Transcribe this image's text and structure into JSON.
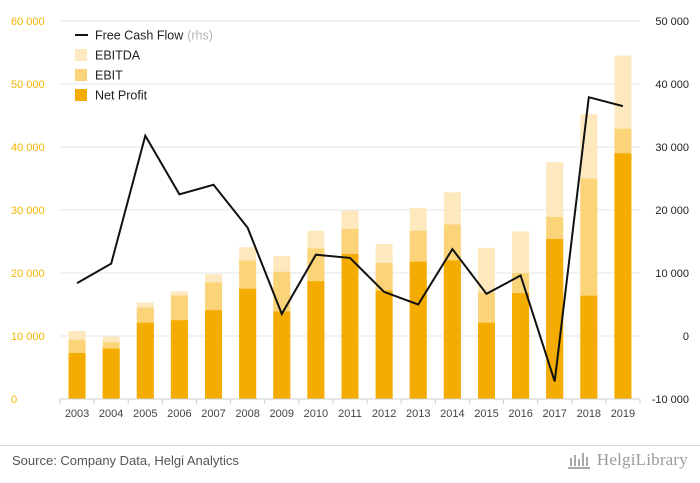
{
  "chart_data": {
    "type": "bar+line",
    "categories": [
      "2003",
      "2004",
      "2005",
      "2006",
      "2007",
      "2008",
      "2009",
      "2010",
      "2011",
      "2012",
      "2013",
      "2014",
      "2015",
      "2016",
      "2017",
      "2018",
      "2019"
    ],
    "series": [
      {
        "name": "EBITDA",
        "axis": "left",
        "kind": "bar",
        "color": "#fde9bd",
        "values": [
          10800,
          9900,
          15300,
          17100,
          19800,
          24100,
          22700,
          26700,
          29900,
          24600,
          30300,
          32800,
          24000,
          26600,
          37600,
          45200,
          54500
        ]
      },
      {
        "name": "EBIT",
        "axis": "left",
        "kind": "bar",
        "color": "#fbd47a",
        "values": [
          9400,
          9000,
          14500,
          16400,
          18500,
          22000,
          20200,
          23900,
          27000,
          21600,
          26700,
          27700,
          16900,
          20000,
          28900,
          35000,
          42900
        ]
      },
      {
        "name": "Net Profit",
        "axis": "left",
        "kind": "bar",
        "color": "#f5ac00",
        "values": [
          7300,
          8000,
          12100,
          12500,
          14100,
          17500,
          13900,
          18700,
          23000,
          17200,
          21800,
          22000,
          12100,
          16800,
          25400,
          16400,
          39000
        ]
      },
      {
        "name": "Free Cash Flow",
        "suffix": "(rhs)",
        "axis": "right",
        "kind": "line",
        "color": "#111111",
        "values": [
          8400,
          11500,
          31800,
          22500,
          24000,
          17200,
          3500,
          12900,
          12400,
          7000,
          5000,
          13800,
          6700,
          9600,
          -7200,
          37900,
          36500
        ]
      }
    ],
    "y_left": {
      "min": 0,
      "max": 60000,
      "step": 10000,
      "ticks": [
        "0",
        "10 000",
        "20 000",
        "30 000",
        "40 000",
        "50 000",
        "60 000"
      ]
    },
    "y_right": {
      "min": -10000,
      "max": 50000,
      "step": 10000,
      "ticks": [
        "-10 000",
        "0",
        "10 000",
        "20 000",
        "30 000",
        "40 000",
        "50 000"
      ]
    },
    "legend_position": "top-left",
    "grid": true
  },
  "footer": {
    "source": "Source: Company Data, Helgi Analytics",
    "brand": "HelgiLibrary"
  },
  "colors": {
    "left_axis": "#f5b400",
    "grid": "#e6e6e6"
  }
}
